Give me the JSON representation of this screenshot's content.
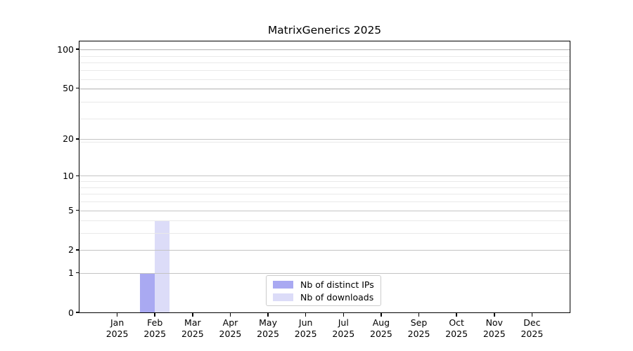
{
  "figure": {
    "background": "#ffffff"
  },
  "chart_data": {
    "type": "bar",
    "title": "MatrixGenerics 2025",
    "categories": [
      "Jan",
      "Feb",
      "Mar",
      "Apr",
      "May",
      "Jun",
      "Jul",
      "Aug",
      "Sep",
      "Oct",
      "Nov",
      "Dec"
    ],
    "category_year": "2025",
    "series": [
      {
        "name": "Nb of distinct IPs",
        "color": "#a9a9f2",
        "values": [
          0,
          1,
          0,
          0,
          0,
          0,
          0,
          0,
          0,
          0,
          0,
          0
        ]
      },
      {
        "name": "Nb of downloads",
        "color": "#dcdcf8",
        "values": [
          0,
          4,
          0,
          0,
          0,
          0,
          0,
          0,
          0,
          0,
          0,
          0
        ]
      }
    ],
    "xlabel": "",
    "ylabel": "",
    "yticks": [
      0,
      1,
      2,
      5,
      10,
      20,
      50,
      100
    ],
    "ylim": [
      0,
      115
    ],
    "yscale": "log1p",
    "grid": true,
    "grid_major_color": "#c4c4c4",
    "grid_minor_color": "#e9e9e9",
    "axis_color": "#000000",
    "legend_position": "lower-center-inside",
    "legend_border_color": "#cccccc",
    "legend_background": "#ffffff"
  }
}
